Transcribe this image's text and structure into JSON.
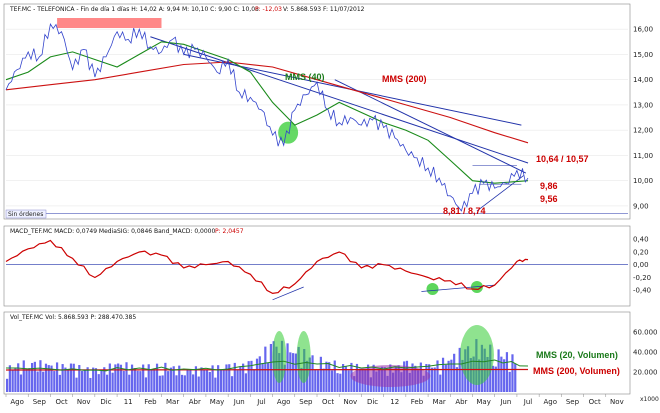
{
  "header": {
    "price": "TEF.MC - TELEFONICA - Fin de día 1 días H: 14,02 A: 9,94 M: 10,10 C: 9,90 C: 10,08",
    "price_change": "P: -12,03",
    "price_tail": "V: 5.868.593 F: 11/07/2012",
    "macd": "MACD_TEF.MC MACD: 0,0749 MediaSIG: 0,0846 Band_MACD: 0,0000",
    "macd_change": "P: 2,0457",
    "vol": "Vol_TEF.MC Vol: 5.868.593 P: 288.470.385"
  },
  "labels": {
    "mms40": "MMS (40)",
    "mms200": "MMS (200)",
    "level_upper": "10,64 / 10,57",
    "level_986": "9,86",
    "level_956": "9,56",
    "level_low": "8,81 / 8,74",
    "sin_ordenes": "Sin órdenes",
    "vol_mms20": "MMS (20, Volumen)",
    "vol_mms200": "MMS (200, Volumen)",
    "vol_unit": "x1000"
  },
  "colors": {
    "price": "#3344cc",
    "mms40": "#1a8a1a",
    "mms200": "#cc1111",
    "trendline": "#2233aa",
    "highlight_green": "#33cc33",
    "highlight_red": "#ff5555",
    "highlight_purple": "#9933aa",
    "macd": "#cc0000",
    "volume": "#6666ee"
  },
  "chart_data": [
    {
      "type": "line",
      "title": "TEF.MC - TELEFONICA",
      "x_months": [
        "Ago",
        "Sep",
        "Oct",
        "Nov",
        "Dic",
        "11",
        "Feb",
        "Mar",
        "Abr",
        "May",
        "Jun",
        "Jul",
        "Ago",
        "Sep",
        "Oct",
        "Nov",
        "Dic",
        "12",
        "Feb",
        "Mar",
        "Abr",
        "May",
        "Jun",
        "Jul",
        "Ago",
        "Sep",
        "Oct",
        "Nov"
      ],
      "ylim": [
        8.6,
        16.6
      ],
      "yticks": [
        "9,00",
        "10,00",
        "11,00",
        "12,00",
        "13,00",
        "14,00",
        "15,00",
        "16,00"
      ],
      "series": [
        {
          "name": "Precio",
          "x": [
            0,
            0.5,
            1,
            1.5,
            2,
            2.5,
            3,
            3.5,
            4,
            4.5,
            5,
            5.5,
            6,
            6.5,
            7,
            7.5,
            8,
            8.5,
            9,
            9.5,
            10,
            10.5,
            11,
            11.5,
            12,
            12.5,
            13,
            13.5,
            14,
            14.5,
            15,
            15.5,
            16,
            16.5,
            17,
            17.5,
            18,
            18.5,
            19,
            19.5,
            20,
            20.5,
            21,
            21.5,
            22,
            22.5,
            23,
            23.5
          ],
          "y": [
            13.6,
            14.4,
            15.1,
            14.9,
            16.2,
            15.9,
            14.4,
            15.2,
            14.1,
            14.9,
            15.9,
            15.6,
            16.0,
            15.3,
            15.1,
            15.6,
            15.0,
            15.2,
            14.9,
            14.3,
            14.8,
            13.5,
            13.3,
            12.8,
            11.8,
            11.4,
            12.8,
            13.4,
            13.9,
            12.8,
            12.3,
            12.5,
            12.2,
            12.4,
            12.1,
            11.7,
            11.2,
            10.9,
            10.5,
            10.1,
            9.4,
            8.8,
            9.5,
            9.9,
            9.7,
            9.9,
            10.4,
            10.1
          ]
        },
        {
          "name": "MMS (40)",
          "x": [
            0,
            1,
            2,
            3,
            4,
            5,
            6,
            7,
            8,
            9,
            10,
            11,
            12,
            13,
            14,
            15,
            16,
            17,
            18,
            19,
            20,
            21,
            22,
            23.5
          ],
          "y": [
            14.0,
            14.3,
            14.9,
            15.1,
            14.8,
            14.5,
            15.0,
            15.5,
            15.4,
            15.1,
            14.8,
            14.3,
            13.1,
            12.2,
            12.6,
            13.1,
            12.7,
            12.3,
            12.0,
            11.6,
            10.8,
            10.0,
            9.9,
            10.0
          ]
        },
        {
          "name": "MMS (200)",
          "x": [
            0,
            2,
            4,
            6,
            8,
            10,
            12,
            14,
            16,
            18,
            20,
            22,
            23.5
          ],
          "y": [
            13.6,
            13.8,
            14.0,
            14.3,
            14.6,
            14.7,
            14.5,
            14.0,
            13.5,
            13.0,
            12.5,
            11.9,
            11.5
          ]
        }
      ],
      "annotations": [
        "MMS (40)",
        "MMS (200)",
        "10,64 / 10,57",
        "9,86",
        "9,56",
        "8,81 / 8,74"
      ]
    },
    {
      "type": "line",
      "title": "MACD_TEF.MC",
      "ylim": [
        -0.6,
        0.45
      ],
      "yticks": [
        "0,40",
        "0,20",
        "0,00",
        "-0,20",
        "-0,40"
      ],
      "series": [
        {
          "name": "MACD",
          "x": [
            0,
            1,
            2,
            3,
            4,
            5,
            6,
            7,
            8,
            9,
            10,
            11,
            12,
            13,
            14,
            15,
            16,
            17,
            18,
            19,
            20,
            21,
            22,
            23,
            23.5
          ],
          "y": [
            0.05,
            0.25,
            0.38,
            0.1,
            -0.2,
            0.05,
            0.2,
            0.15,
            -0.05,
            0.0,
            0.05,
            -0.15,
            -0.45,
            -0.3,
            0.05,
            0.2,
            -0.05,
            0.0,
            -0.1,
            -0.2,
            -0.25,
            -0.38,
            -0.32,
            0.05,
            0.08
          ]
        }
      ]
    },
    {
      "type": "bar",
      "title": "Vol_TEF.MC",
      "ylim": [
        0,
        70000
      ],
      "yticks": [
        "60.000",
        "40.000",
        "20.000"
      ],
      "unit": "x1000",
      "series": [
        {
          "name": "Volumen",
          "x": [
            0,
            1,
            2,
            3,
            4,
            5,
            6,
            7,
            8,
            9,
            10,
            11,
            12,
            13,
            14,
            15,
            16,
            17,
            18,
            19,
            20,
            21,
            22,
            23
          ],
          "y": [
            22000,
            28000,
            25000,
            24000,
            20000,
            26000,
            23000,
            25000,
            21000,
            22000,
            24000,
            26000,
            45000,
            40000,
            30000,
            25000,
            24000,
            22000,
            26000,
            24000,
            32000,
            45000,
            38000,
            30000
          ]
        },
        {
          "name": "MMS (20, Volumen)",
          "x": [
            0,
            2,
            4,
            6,
            8,
            10,
            12,
            14,
            16,
            18,
            20,
            22,
            23.5
          ],
          "y": [
            24000,
            23000,
            22000,
            24000,
            23000,
            23000,
            30000,
            28000,
            24000,
            24000,
            28000,
            32000,
            26000
          ]
        },
        {
          "name": "MMS (200, Volumen)",
          "x": [
            0,
            23.5
          ],
          "y": [
            22000,
            22500
          ]
        }
      ]
    }
  ]
}
